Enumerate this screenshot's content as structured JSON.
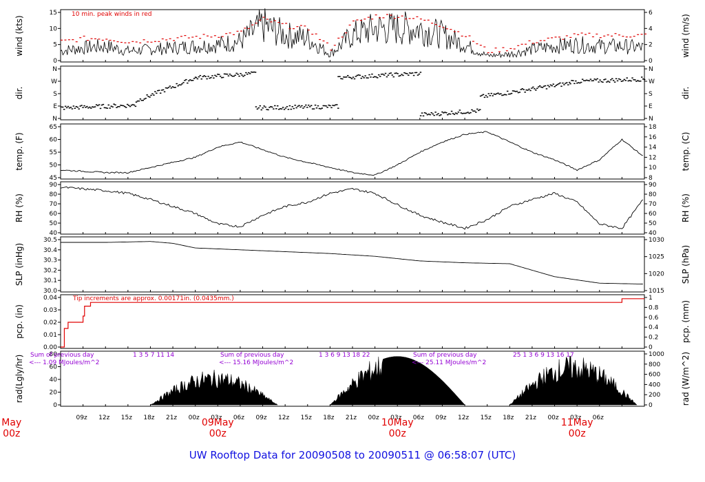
{
  "title": "UW Rooftop Data for 20090508  to  20090511 @ 06:58:07  (UTC)",
  "colors": {
    "title": "#1010e0",
    "date_labels": "#e00000",
    "peak": "#e00000",
    "precip": "#e00000",
    "solar_notes": "#9400d3",
    "data": "#000000"
  },
  "time_axis": {
    "hours_ticks": [
      "09z",
      "12z",
      "15z",
      "18z",
      "21z",
      "00z",
      "03z",
      "06z",
      "09z",
      "12z",
      "15z",
      "18z",
      "21z",
      "00z",
      "03z",
      "06z",
      "09z",
      "12z",
      "15z",
      "18z",
      "21z",
      "00z",
      "03z",
      "06z"
    ],
    "date_labels": [
      {
        "line1": "May",
        "line2": "00z"
      },
      {
        "line1": "09May",
        "line2": "00z"
      },
      {
        "line1": "10May",
        "line2": "00z"
      },
      {
        "line1": "11May",
        "line2": "00z"
      }
    ]
  },
  "chart_data": [
    {
      "id": "wind",
      "type": "line",
      "ylabel_left": "wind (kts)",
      "ylabel_right": "wind (m/s)",
      "left_ticks": [
        "0",
        "5",
        "10",
        "15"
      ],
      "right_ticks": [
        "0",
        "2",
        "4",
        "6"
      ],
      "ylim": [
        0,
        15
      ],
      "annotation": "10 min. peak winds in red",
      "x_hours": [
        0,
        3,
        6,
        9,
        12,
        15,
        18,
        21,
        24,
        27,
        30,
        33,
        36,
        39,
        42,
        45,
        48,
        51,
        54,
        57,
        60,
        63,
        66,
        69,
        72,
        75,
        78
      ],
      "values": [
        3,
        4,
        4.5,
        3,
        3.5,
        4,
        4.5,
        5,
        6,
        11,
        8,
        7,
        2,
        8,
        10,
        10,
        10,
        8,
        5,
        1.5,
        2,
        3.5,
        4.5,
        5,
        4.5,
        4.5,
        4
      ],
      "peaks": [
        6,
        7,
        7,
        6,
        6.5,
        7,
        7.5,
        8,
        9,
        13,
        11,
        10,
        4,
        12,
        14,
        14,
        13,
        11,
        8,
        3,
        4,
        6,
        7,
        8,
        8,
        8,
        8
      ]
    },
    {
      "id": "dir",
      "type": "scatter",
      "ylabel_left": "dir.",
      "ylabel_right": "dir.",
      "left_ticks": [
        "N",
        "E",
        "S",
        "W",
        "N"
      ],
      "right_ticks": [
        "N",
        "E",
        "S",
        "W",
        "N"
      ],
      "segments": [
        {
          "x_start": 0,
          "x_end": 10,
          "dir_start": 80,
          "dir_end": 100
        },
        {
          "x_start": 10,
          "x_end": 18,
          "dir_start": 130,
          "dir_end": 300
        },
        {
          "x_start": 18,
          "x_end": 26,
          "dir_start": 300,
          "dir_end": 330
        },
        {
          "x_start": 26,
          "x_end": 37,
          "dir_start": 80,
          "dir_end": 90
        },
        {
          "x_start": 37,
          "x_end": 48,
          "dir_start": 300,
          "dir_end": 330
        },
        {
          "x_start": 48,
          "x_end": 56,
          "dir_start": 30,
          "dir_end": 60
        },
        {
          "x_start": 56,
          "x_end": 68,
          "dir_start": 160,
          "dir_end": 260
        },
        {
          "x_start": 68,
          "x_end": 78,
          "dir_start": 270,
          "dir_end": 290
        }
      ]
    },
    {
      "id": "temp",
      "type": "line",
      "ylabel_left": "temp. (F)",
      "ylabel_right": "temp. (C)",
      "left_ticks": [
        "45",
        "50",
        "55",
        "60",
        "65"
      ],
      "right_ticks": [
        "8",
        "10",
        "12",
        "14",
        "16",
        "18"
      ],
      "ylim": [
        45,
        65
      ],
      "x_hours": [
        0,
        3,
        6,
        9,
        12,
        15,
        18,
        21,
        24,
        27,
        30,
        33,
        36,
        39,
        42,
        45,
        48,
        51,
        54,
        57,
        60,
        63,
        66,
        69,
        72,
        75,
        78
      ],
      "values": [
        48,
        47.5,
        47,
        47,
        49,
        51,
        53,
        57,
        59,
        56,
        53,
        51,
        49,
        47,
        46,
        50,
        55,
        59,
        62,
        63,
        59,
        55,
        52,
        48,
        52,
        60,
        53
      ]
    },
    {
      "id": "rh",
      "type": "line",
      "ylabel_left": "RH (%)",
      "ylabel_right": "RH (%)",
      "left_ticks": [
        "40",
        "50",
        "60",
        "70",
        "80",
        "90"
      ],
      "right_ticks": [
        "40",
        "50",
        "60",
        "70",
        "80",
        "90"
      ],
      "ylim": [
        40,
        95
      ],
      "x_hours": [
        0,
        3,
        6,
        9,
        12,
        15,
        18,
        21,
        24,
        27,
        30,
        33,
        36,
        39,
        42,
        45,
        48,
        51,
        54,
        57,
        60,
        63,
        66,
        69,
        72,
        75,
        78
      ],
      "values": [
        92,
        90,
        88,
        85,
        78,
        70,
        62,
        50,
        47,
        60,
        70,
        75,
        85,
        90,
        85,
        72,
        60,
        52,
        45,
        55,
        70,
        78,
        85,
        75,
        50,
        45,
        80
      ]
    },
    {
      "id": "slp",
      "type": "line",
      "ylabel_left": "SLP (inHg)",
      "ylabel_right": "SLP (hPa)",
      "left_ticks": [
        "30.0",
        "30.1",
        "30.2",
        "30.3",
        "30.4",
        "30.5"
      ],
      "right_ticks": [
        "1015",
        "1020",
        "1025",
        "1030"
      ],
      "ylim": [
        29.95,
        30.5
      ],
      "x_hours": [
        0,
        6,
        12,
        15,
        18,
        24,
        30,
        36,
        42,
        48,
        54,
        60,
        66,
        72,
        78
      ],
      "values": [
        30.47,
        30.47,
        30.48,
        30.46,
        30.41,
        30.39,
        30.37,
        30.35,
        30.32,
        30.27,
        30.25,
        30.24,
        30.1,
        30.03,
        30.02
      ]
    },
    {
      "id": "pcp",
      "type": "line",
      "ylabel_left": "pcp. (in)",
      "ylabel_right": "pcp. (mm)",
      "left_ticks": [
        "0.00",
        "0.01",
        "0.02",
        "0.03",
        "0.04"
      ],
      "right_ticks": [
        "0",
        "0.2",
        "0.4",
        "0.6",
        "0.8",
        "1"
      ],
      "ylim": [
        0,
        0.04
      ],
      "annotation": "Tip increments are approx. 0.00171in. (0.0435mm.)",
      "x_hours": [
        0,
        0.5,
        1,
        2,
        3,
        3.2,
        4,
        74,
        75,
        78
      ],
      "values": [
        0,
        0.015,
        0.02,
        0.02,
        0.025,
        0.033,
        0.036,
        0.036,
        0.039,
        0.039
      ]
    },
    {
      "id": "rad",
      "type": "area",
      "ylabel_left": "rad(Lgly/hr)",
      "ylabel_right": "rad (W/m^2)",
      "left_ticks": [
        "0",
        "20",
        "40",
        "60",
        "80"
      ],
      "right_ticks": [
        "0",
        "200",
        "400",
        "600",
        "800",
        "1000"
      ],
      "ylim": [
        0,
        100
      ],
      "daily_notes": [
        {
          "label": "Sum of previous day",
          "total": "<--- 1.09 MJoules/m^2",
          "hours": "1   3    5   7   11   14"
        },
        {
          "label": "Sum of previous day",
          "total": "<--- 15.16 MJoules/m^2",
          "hours": "1   3   6   9  13   18   22"
        },
        {
          "label": "Sum of previous day",
          "total": "<--- 25.11 MJoules/m^2",
          "hours": "25        1   3   6   9  13   16   17"
        }
      ],
      "days": [
        {
          "x_start": 12,
          "x_end": 29,
          "peak": 60
        },
        {
          "x_start": 36,
          "x_end": 54,
          "peak": 95
        },
        {
          "x_start": 60,
          "x_end": 77,
          "peak": 85
        }
      ]
    }
  ]
}
